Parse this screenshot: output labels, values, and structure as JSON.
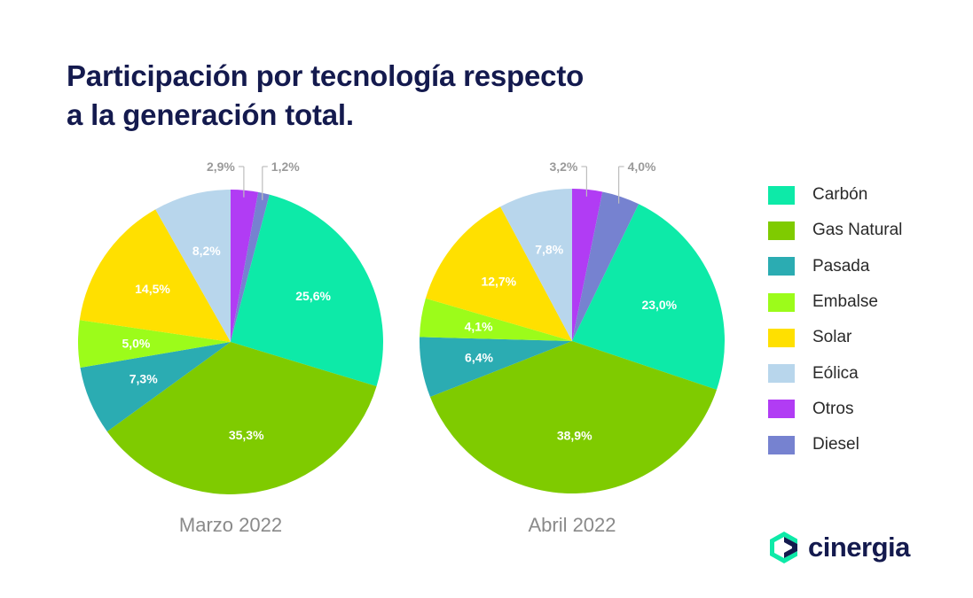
{
  "title": {
    "line1": "Participación por tecnología respecto",
    "line2": "a la generación total."
  },
  "chart_data": [
    {
      "type": "pie",
      "title": "Marzo 2022",
      "categories": [
        "Carbón",
        "Gas Natural",
        "Pasada",
        "Embalse",
        "Solar",
        "Eólica",
        "Otros",
        "Diesel"
      ],
      "values": [
        25.6,
        35.3,
        7.3,
        5.0,
        14.5,
        8.2,
        2.9,
        1.2
      ],
      "value_labels": [
        "25,6%",
        "35,3%",
        "7,3%",
        "5,0%",
        "14,5%",
        "8,2%",
        "2,9%",
        "1,2%"
      ]
    },
    {
      "type": "pie",
      "title": "Abril 2022",
      "categories": [
        "Carbón",
        "Gas Natural",
        "Pasada",
        "Embalse",
        "Solar",
        "Eólica",
        "Otros",
        "Diesel"
      ],
      "values": [
        23.0,
        38.9,
        6.4,
        4.1,
        12.7,
        7.8,
        3.2,
        4.0
      ],
      "value_labels": [
        "23,0%",
        "38,9%",
        "6,4%",
        "4,1%",
        "12,7%",
        "7,8%",
        "3,2%",
        "4,0%"
      ]
    }
  ],
  "legend": [
    {
      "label": "Carbón",
      "color": "#0deaa8"
    },
    {
      "label": "Gas Natural",
      "color": "#7fcb00"
    },
    {
      "label": "Pasada",
      "color": "#2bacb2"
    },
    {
      "label": "Embalse",
      "color": "#9cfc1a"
    },
    {
      "label": "Solar",
      "color": "#ffe000"
    },
    {
      "label": "Eólica",
      "color": "#b8d6ec"
    },
    {
      "label": "Otros",
      "color": "#b13cf4"
    },
    {
      "label": "Diesel",
      "color": "#7682d0"
    }
  ],
  "brand": {
    "name": "cinergia",
    "icon": "cinergia-logo-icon",
    "colors": {
      "primary": "#141a4e",
      "accent": "#0deaa8"
    }
  }
}
